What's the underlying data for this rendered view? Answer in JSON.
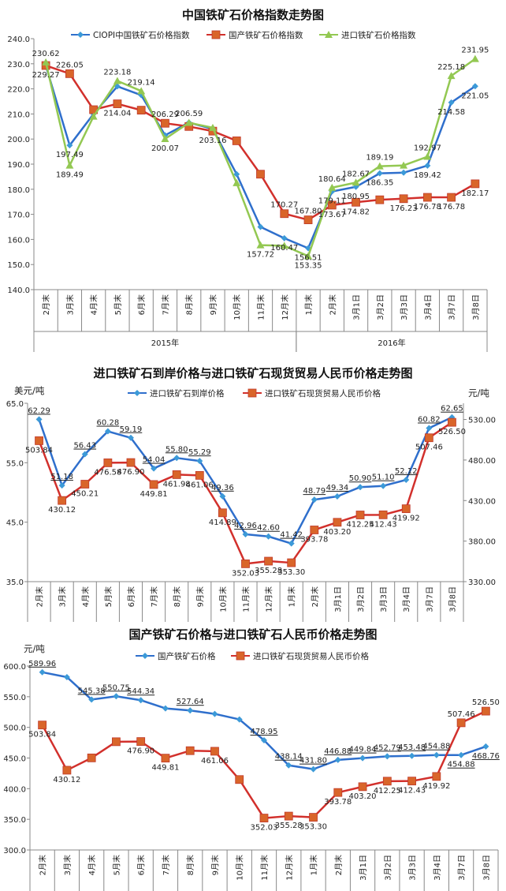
{
  "chart_data": [
    {
      "type": "line",
      "title": "中国铁矿石价格指数走势图",
      "categories": [
        "2月末",
        "3月末",
        "4月末",
        "5月末",
        "6月末",
        "7月末",
        "8月末",
        "9月末",
        "10月末",
        "11月末",
        "12月末",
        "1月末",
        "2月末",
        "3月1日",
        "3月2日",
        "3月3日",
        "3月4日",
        "3月7日",
        "3月8日"
      ],
      "groups": [
        {
          "label": "2015年",
          "count": 11
        },
        {
          "label": "2016年",
          "count": 8
        }
      ],
      "ylim": [
        140,
        240
      ],
      "yticks": [
        "140.0",
        "150.0",
        "160.0",
        "170.0",
        "180.0",
        "190.0",
        "200.0",
        "210.0",
        "220.0",
        "230.0",
        "240.0"
      ],
      "grid": false,
      "legend": "top",
      "series": [
        {
          "name": "CIOPI中国铁矿石价格指数",
          "color": "#2f6fcc",
          "marker_color": "#3c9ad8",
          "marker": "diamond",
          "axis": "left",
          "values": [
            229.27,
            197.49,
            210.0,
            221.0,
            217.5,
            201.5,
            206.59,
            204.0,
            186.0,
            165.0,
            160.47,
            156.51,
            179.11,
            180.95,
            186.35,
            186.6,
            189.42,
            214.58,
            221.05
          ],
          "labels": [
            "229.27",
            "197.49",
            "",
            "",
            "",
            "",
            "206.59",
            "",
            "",
            "",
            "160.47",
            "156.51",
            "179.11",
            "180.95",
            "186.35",
            "",
            "189.42",
            "214.58",
            "221.05"
          ]
        },
        {
          "name": "国产铁矿石价格指数",
          "color": "#d2302c",
          "marker_color": "#d9652a",
          "marker": "square",
          "axis": "left",
          "values": [
            229.3,
            226.05,
            211.7,
            214.04,
            211.5,
            206.29,
            205.0,
            203.16,
            199.3,
            186.0,
            170.27,
            167.8,
            173.67,
            174.82,
            175.8,
            176.23,
            176.78,
            176.78,
            182.17
          ],
          "labels": [
            "",
            "226.05",
            "",
            "214.04",
            "",
            "206.29",
            "",
            "203.16",
            "",
            "",
            "170.27",
            "167.80",
            "173.67",
            "174.82",
            "",
            "176.23",
            "176.78",
            "176.78",
            "182.17"
          ]
        },
        {
          "name": "进口铁矿石价格指数",
          "color": "#93c852",
          "marker_color": "#93c852",
          "marker": "triangle",
          "axis": "left",
          "values": [
            230.62,
            189.49,
            209.0,
            223.18,
            219.14,
            200.07,
            206.5,
            204.5,
            182.5,
            157.72,
            157.5,
            153.35,
            180.64,
            182.67,
            189.19,
            189.5,
            192.97,
            225.18,
            231.95
          ],
          "labels": [
            "230.62",
            "189.49",
            "",
            "223.18",
            "219.14",
            "200.07",
            "",
            "",
            "",
            "157.72",
            "",
            "153.35",
            "180.64",
            "182.67",
            "189.19",
            "",
            "192.97",
            "225.18",
            "231.95"
          ]
        }
      ]
    },
    {
      "type": "line",
      "title": "进口铁矿石到岸价格与进口铁矿石现货贸易人民币价格走势图",
      "ylabel": "美元/吨",
      "y2label": "元/吨",
      "categories": [
        "2月末",
        "3月末",
        "4月末",
        "5月末",
        "6月末",
        "7月末",
        "8月末",
        "9月末",
        "10月末",
        "11月末",
        "12月末",
        "1月末",
        "2月末",
        "3月1日",
        "3月2日",
        "3月3日",
        "3月4日",
        "3月7日",
        "3月8日"
      ],
      "ylim": [
        35,
        65
      ],
      "yticks": [
        "35.0",
        "45.0",
        "55.0",
        "65.0"
      ],
      "y2lim": [
        330,
        550
      ],
      "y2ticks": [
        "330.00",
        "380.00",
        "430.00",
        "480.00",
        "530.00"
      ],
      "grid": false,
      "legend": "top",
      "series": [
        {
          "name": "进口铁矿石到岸价格",
          "color": "#2f6fcc",
          "marker_color": "#3c9ad8",
          "marker": "diamond",
          "axis": "left",
          "values": [
            62.29,
            51.18,
            56.43,
            60.28,
            59.19,
            54.04,
            55.8,
            55.29,
            49.36,
            42.96,
            42.6,
            41.42,
            48.79,
            49.34,
            50.9,
            51.1,
            52.12,
            60.82,
            62.65
          ],
          "labels": [
            "62.29",
            "51.18",
            "56.43",
            "60.28",
            "59.19",
            "54.04",
            "55.80",
            "55.29",
            "49.36",
            "42.96",
            "42.60",
            "41.42",
            "48.79",
            "49.34",
            "50.90",
            "51.10",
            "52.12",
            "60.82",
            "62.65"
          ]
        },
        {
          "name": "进口铁矿石现货贸易人民币价格",
          "color": "#d2302c",
          "marker_color": "#d9652a",
          "marker": "square",
          "axis": "right",
          "values": [
            503.84,
            430.12,
            450.21,
            476.58,
            476.9,
            449.81,
            461.98,
            461.06,
            414.89,
            352.03,
            355.28,
            353.3,
            393.78,
            403.2,
            412.25,
            412.43,
            419.92,
            507.46,
            526.5
          ],
          "labels": [
            "503.84",
            "430.12",
            "450.21",
            "476.58",
            "476.90",
            "449.81",
            "461.98",
            "461.06",
            "414.89",
            "352.03",
            "355.28",
            "353.30",
            "393.78",
            "403.20",
            "412.25",
            "412.43",
            "419.92",
            "507.46",
            "526.50"
          ]
        }
      ]
    },
    {
      "type": "line",
      "title": "国产铁矿石价格与进口铁矿石人民币价格走势图",
      "ylabel": "元/吨",
      "categories": [
        "2月末",
        "3月末",
        "4月末",
        "5月末",
        "6月末",
        "7月末",
        "8月末",
        "9月末",
        "10月末",
        "11月末",
        "12月末",
        "1月末",
        "2月末",
        "3月1日",
        "3月2日",
        "3月3日",
        "3月4日",
        "3月7日",
        "3月8日"
      ],
      "ylim": [
        300,
        600
      ],
      "yticks": [
        "300.0",
        "350.0",
        "400.0",
        "450.0",
        "500.0",
        "550.0",
        "600.0"
      ],
      "grid": false,
      "legend": "top",
      "series": [
        {
          "name": "国产铁矿石价格",
          "color": "#2f6fcc",
          "marker_color": "#3c9ad8",
          "marker": "diamond",
          "axis": "left",
          "values": [
            589.96,
            582.0,
            545.38,
            550.75,
            544.34,
            531.0,
            527.64,
            522.0,
            513.0,
            478.95,
            438.14,
            431.8,
            446.88,
            449.84,
            452.79,
            453.48,
            454.88,
            454.88,
            468.76
          ],
          "labels": [
            "589.96",
            "",
            "545.38",
            "550.75",
            "544.34",
            "",
            "527.64",
            "",
            "",
            "478.95",
            "438.14",
            "431.80",
            "446.88",
            "449.84",
            "452.79",
            "453.48",
            "454.88",
            "454.88",
            "468.76"
          ]
        },
        {
          "name": "进口铁矿石现货贸易人民币价格",
          "color": "#d2302c",
          "marker_color": "#d9652a",
          "marker": "square",
          "axis": "left",
          "values": [
            503.84,
            430.12,
            450.21,
            476.58,
            476.9,
            449.81,
            461.98,
            461.06,
            414.89,
            352.03,
            355.28,
            353.3,
            393.78,
            403.2,
            412.25,
            412.43,
            419.92,
            507.46,
            526.5
          ],
          "labels": [
            "503.84",
            "430.12",
            "",
            "",
            "476.90",
            "449.81",
            "",
            "461.06",
            "",
            "352.03",
            "355.28",
            "353.30",
            "393.78",
            "403.20",
            "412.25",
            "412.43",
            "419.92",
            "507.46",
            "526.50"
          ]
        }
      ]
    }
  ]
}
